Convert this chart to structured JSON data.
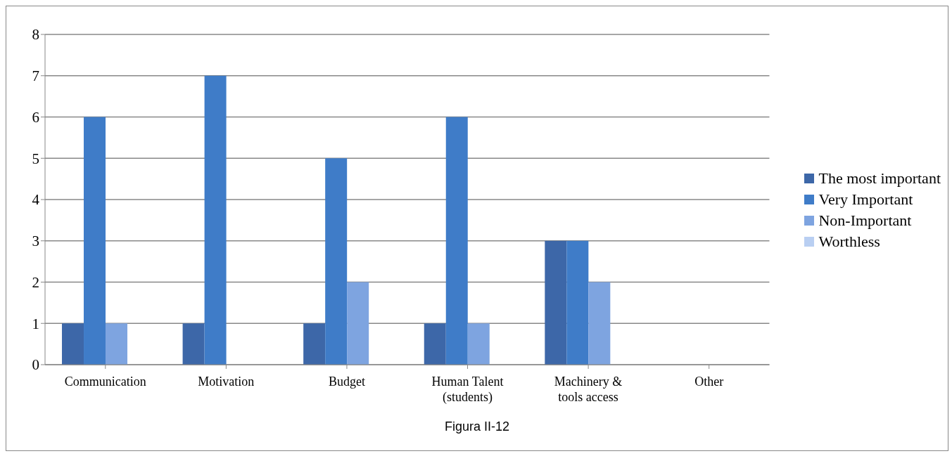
{
  "chart_data": {
    "type": "bar",
    "categories": [
      "Communication",
      "Motivation",
      "Budget",
      "Human Talent (students)",
      "Machinery & tools access",
      "Other"
    ],
    "series": [
      {
        "name": "The most important",
        "color": "#3d67a8",
        "values": [
          1,
          1,
          1,
          1,
          3,
          0
        ]
      },
      {
        "name": "Very Important",
        "color": "#3f7cc8",
        "values": [
          6,
          7,
          5,
          6,
          3,
          0
        ]
      },
      {
        "name": "Non-Important",
        "color": "#7ea4e0",
        "values": [
          1,
          0,
          2,
          1,
          2,
          0
        ]
      },
      {
        "name": "Worthless",
        "color": "#b9cff2",
        "values": [
          0,
          0,
          0,
          0,
          0,
          0
        ]
      }
    ],
    "ylim": [
      0,
      8
    ],
    "yticks": [
      0,
      1,
      2,
      3,
      4,
      5,
      6,
      7,
      8
    ],
    "grid": "y",
    "legend": "right",
    "annotations": [
      "Figura II-12"
    ]
  }
}
